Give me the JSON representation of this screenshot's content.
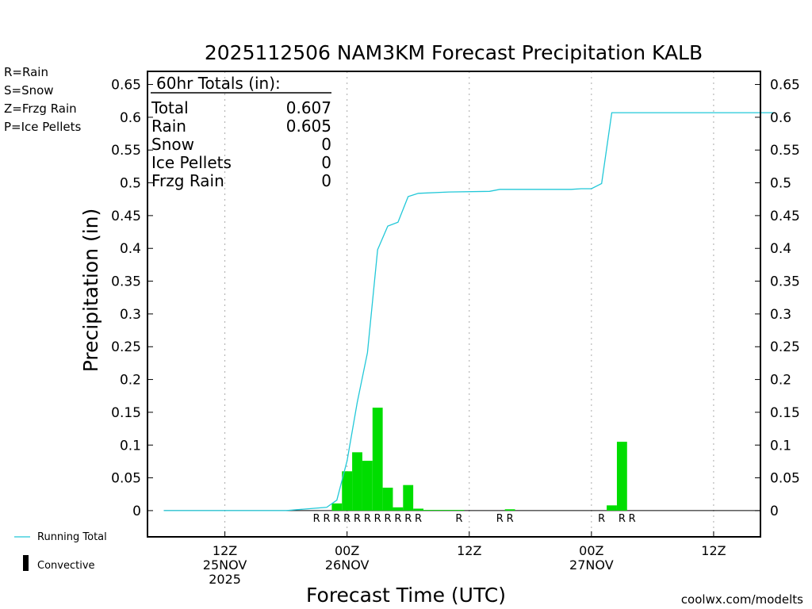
{
  "chart_data": {
    "type": "bar",
    "title": "2025112506 NAM3KM Forecast Precipitation KALB",
    "xlabel": "Forecast Time (UTC)",
    "ylabel": "Precipitation (in)",
    "ylim": [
      -0.04,
      0.67
    ],
    "yticks": [
      0,
      0.05,
      0.1,
      0.15,
      0.2,
      0.25,
      0.3,
      0.35,
      0.4,
      0.45,
      0.5,
      0.55,
      0.6,
      0.65
    ],
    "ytick_labels": [
      "0",
      "0.05",
      "0.1",
      "0.15",
      "0.2",
      "0.25",
      "0.3",
      "0.35",
      "0.4",
      "0.45",
      "0.5",
      "0.55",
      "0.6",
      "0.65"
    ],
    "x_units": "forecast hour",
    "xlim": [
      -1.6,
      58.6
    ],
    "grid": "vertical dotted",
    "xticks": [
      {
        "hour": 6,
        "lines": [
          "12Z",
          "25NOV",
          "2025"
        ]
      },
      {
        "hour": 18,
        "lines": [
          "00Z",
          "26NOV"
        ]
      },
      {
        "hour": 30,
        "lines": [
          "12Z"
        ]
      },
      {
        "hour": 42,
        "lines": [
          "00Z",
          "27NOV"
        ]
      },
      {
        "hour": 54,
        "lines": [
          "12Z"
        ]
      }
    ],
    "hourly_precip": {
      "hours": [
        17,
        18,
        19,
        20,
        21,
        22,
        23,
        24,
        25,
        26,
        27,
        28,
        29,
        34,
        44,
        45
      ],
      "values": [
        0.011,
        0.06,
        0.089,
        0.076,
        0.157,
        0.035,
        0.005,
        0.039,
        0.003,
        0.001,
        0.001,
        0.001,
        0.001,
        0.002,
        0.008,
        0.105
      ]
    },
    "ptype_markers": {
      "hours": [
        15,
        16,
        17,
        18,
        19,
        20,
        21,
        22,
        23,
        24,
        25,
        29,
        33,
        34,
        43,
        45,
        46
      ],
      "labels": [
        "R",
        "R",
        "R",
        "R",
        "R",
        "R",
        "R",
        "R",
        "R",
        "R",
        "R",
        "R",
        "R",
        "R",
        "R",
        "R",
        "R"
      ]
    },
    "running_total": {
      "name": "Running Total",
      "x": [
        0,
        12,
        16,
        17,
        18,
        19,
        20,
        21,
        22,
        23,
        24,
        25,
        28,
        32,
        33,
        40,
        41,
        42,
        43,
        44,
        60
      ],
      "y": [
        0,
        0,
        0.005,
        0.016,
        0.076,
        0.165,
        0.241,
        0.398,
        0.434,
        0.44,
        0.479,
        0.484,
        0.486,
        0.487,
        0.49,
        0.49,
        0.491,
        0.491,
        0.499,
        0.607,
        0.607
      ]
    },
    "totals_box": {
      "heading": "60hr Totals (in):",
      "rows": [
        {
          "label": "Total",
          "value": "0.607"
        },
        {
          "label": "Rain",
          "value": "0.605"
        },
        {
          "label": "Snow",
          "value": "0"
        },
        {
          "label": "Ice Pellets",
          "value": "0"
        },
        {
          "label": "Frzg Rain",
          "value": "0"
        }
      ]
    },
    "ptype_legend": [
      {
        "text": "R=Rain",
        "color": "#00cc00"
      },
      {
        "text": "S=Snow",
        "color": "#3355ee"
      },
      {
        "text": "Z=Frzg Rain",
        "color": "#ee8833"
      },
      {
        "text": "P=Ice Pellets",
        "color": "#ee2299"
      }
    ],
    "series_legend": [
      {
        "text": "Running Total",
        "symbol": "line",
        "color": "#22c8d8"
      },
      {
        "text": "Convective",
        "symbol": "bar",
        "color": "#000000"
      }
    ],
    "colors": {
      "bar": "#00dd00",
      "line": "#22c8d8",
      "marker": "#00cc00",
      "grid": "#aaaaaa"
    },
    "credit": "coolwx.com/modelts"
  }
}
